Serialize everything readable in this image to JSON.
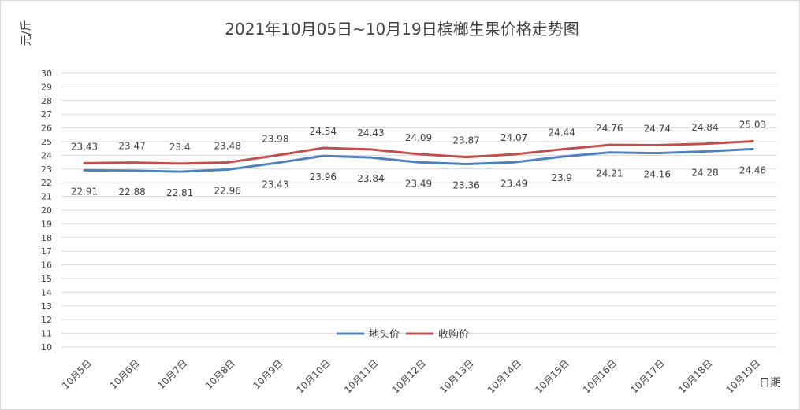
{
  "chart_data": {
    "type": "line",
    "title": "2021年10月05日~10月19日槟榔生果价格走势图",
    "ylabel": "元/斤",
    "xlabel": "日期",
    "ylim": [
      10,
      30
    ],
    "ytick_step": 1,
    "grid": true,
    "legend_position": "bottom-center",
    "categories": [
      "10月5日",
      "10月6日",
      "10月7日",
      "10月8日",
      "10月9日",
      "10月10日",
      "10月11日",
      "10月12日",
      "10月13日",
      "10月14日",
      "10月15日",
      "10月16日",
      "10月17日",
      "10月18日",
      "10月19日"
    ],
    "series": [
      {
        "name": "地头价",
        "color": "#4f81bd",
        "label_position": "below",
        "values": [
          22.91,
          22.88,
          22.81,
          22.96,
          23.43,
          23.96,
          23.84,
          23.49,
          23.36,
          23.49,
          23.9,
          24.21,
          24.16,
          24.28,
          24.46
        ]
      },
      {
        "name": "收购价",
        "color": "#c0504d",
        "label_position": "above",
        "values": [
          23.43,
          23.47,
          23.4,
          23.48,
          23.98,
          24.54,
          24.43,
          24.09,
          23.87,
          24.07,
          24.44,
          24.76,
          24.74,
          24.84,
          25.03
        ]
      }
    ]
  }
}
